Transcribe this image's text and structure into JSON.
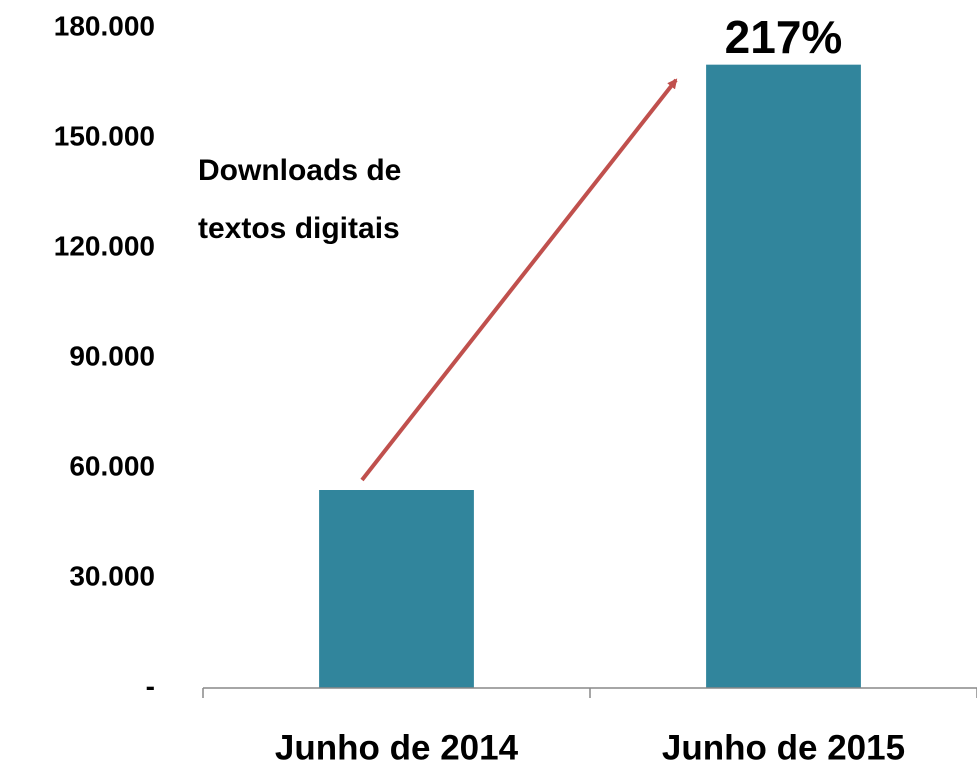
{
  "chart_data": {
    "type": "bar",
    "categories": [
      "Junho de 2014",
      "Junho de 2015"
    ],
    "values": [
      54000,
      170000
    ],
    "color": "#31859c",
    "ylim": [
      0,
      180000
    ],
    "yticks": [
      {
        "value": 0,
        "label": "-"
      },
      {
        "value": 30000,
        "label": "30.000"
      },
      {
        "value": 60000,
        "label": "60.000"
      },
      {
        "value": 90000,
        "label": "90.000"
      },
      {
        "value": 120000,
        "label": "120.000"
      },
      {
        "value": 150000,
        "label": "150.000"
      },
      {
        "value": 180000,
        "label": "180.000"
      }
    ],
    "annotation": [
      "Downloads de",
      "textos digitais"
    ],
    "growth_label": "217%"
  }
}
